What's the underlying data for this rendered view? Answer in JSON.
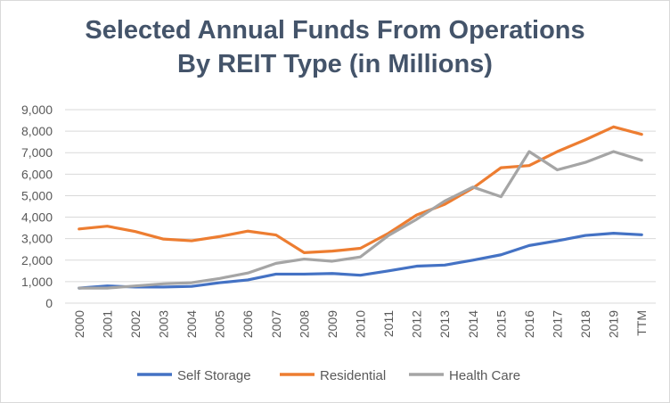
{
  "chart_data": {
    "type": "line",
    "title_lines": [
      "Selected Annual Funds From Operations",
      "By REIT Type (in Millions)"
    ],
    "xlabel": "",
    "ylabel": "",
    "categories": [
      "2000",
      "2001",
      "2002",
      "2003",
      "2004",
      "2005",
      "2006",
      "2007",
      "2008",
      "2009",
      "2010",
      "2011",
      "2012",
      "2013",
      "2014",
      "2015",
      "2016",
      "2017",
      "2018",
      "2019",
      "TTM"
    ],
    "ylim": [
      0,
      9000
    ],
    "yticks": [
      0,
      1000,
      2000,
      3000,
      4000,
      5000,
      6000,
      7000,
      8000,
      9000
    ],
    "ytick_labels": [
      "0",
      "1,000",
      "2,000",
      "3,000",
      "4,000",
      "5,000",
      "6,000",
      "7,000",
      "8,000",
      "9,000"
    ],
    "grid": "horizontal",
    "legend_position": "bottom",
    "series": [
      {
        "name": "Self Storage",
        "color": "#4472c4",
        "values": [
          700,
          800,
          750,
          750,
          780,
          950,
          1080,
          1350,
          1350,
          1380,
          1300,
          1500,
          1720,
          1770,
          2000,
          2250,
          2680,
          2900,
          3150,
          3250,
          3180
        ]
      },
      {
        "name": "Residential",
        "color": "#ed7d31",
        "values": [
          3450,
          3580,
          3330,
          2980,
          2900,
          3100,
          3350,
          3170,
          2350,
          2420,
          2550,
          3250,
          4100,
          4600,
          5350,
          6300,
          6400,
          7050,
          7600,
          8200,
          7850
        ]
      },
      {
        "name": "Health Care",
        "color": "#a5a5a5",
        "values": [
          700,
          700,
          800,
          900,
          950,
          1150,
          1400,
          1850,
          2050,
          1950,
          2150,
          3150,
          3900,
          4750,
          5400,
          4950,
          7050,
          6200,
          6550,
          7050,
          6650
        ]
      }
    ]
  }
}
